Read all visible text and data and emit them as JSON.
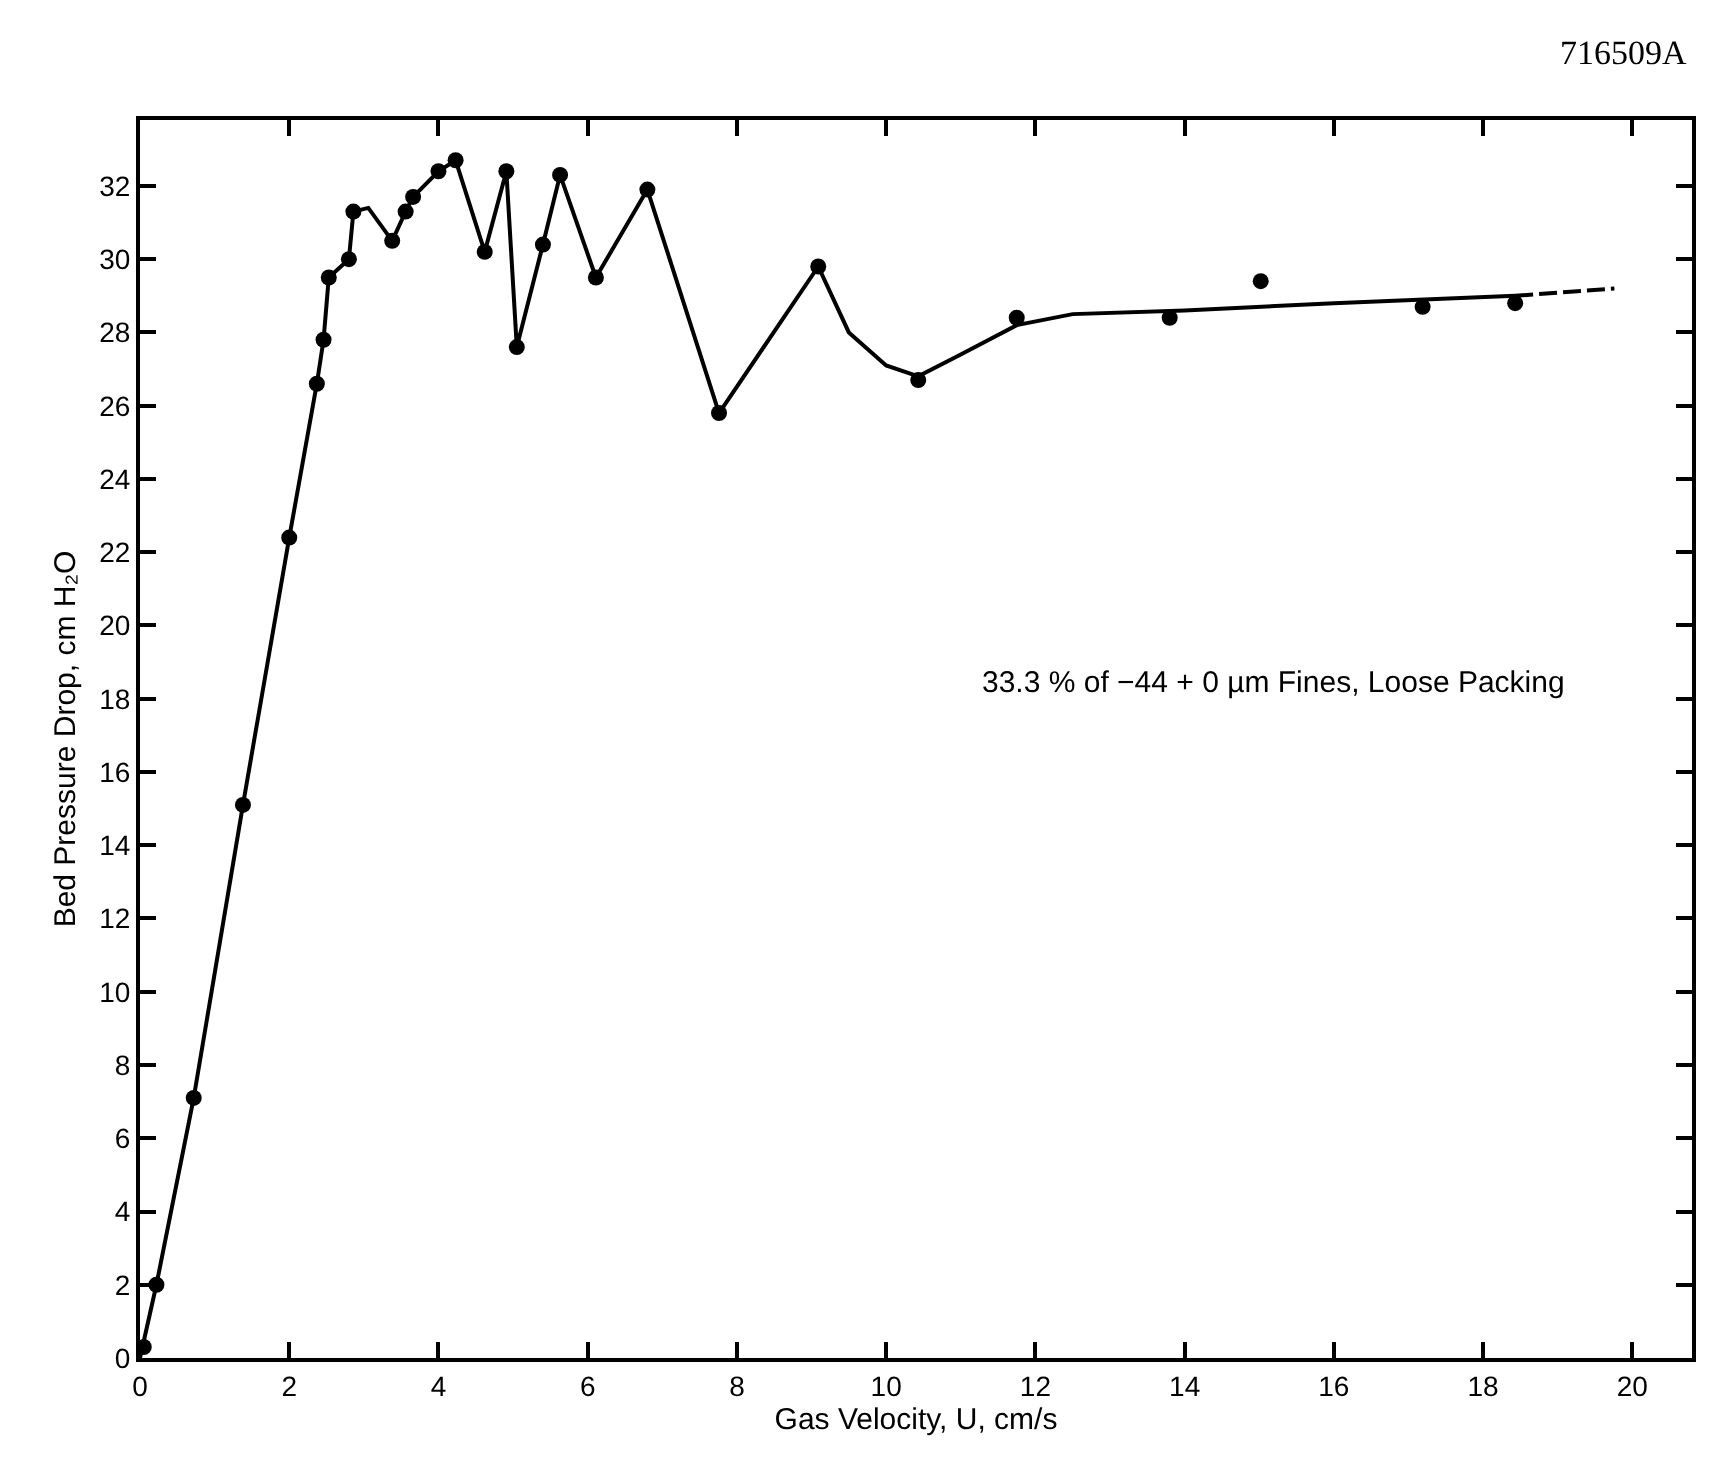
{
  "chart_data": {
    "type": "scatter",
    "xlabel": "Gas Velocity, U, cm/s",
    "ylabel": "Bed Pressure Drop, cm H₂O",
    "annotations": [
      "716509A",
      "33.3 % of −44 + 0 µm Fines, Loose Packing"
    ],
    "xlim": [
      0,
      20.8
    ],
    "ylim": [
      0,
      33.8
    ],
    "xticks": [
      0,
      2,
      4,
      6,
      8,
      10,
      12,
      14,
      16,
      18,
      20
    ],
    "yticks": [
      0,
      2,
      4,
      6,
      8,
      10,
      12,
      14,
      16,
      18,
      20,
      22,
      24,
      26,
      28,
      30,
      32
    ],
    "series": [
      {
        "marker": "circle",
        "color": "#000000",
        "x": [
          0.05,
          0.22,
          0.72,
          1.38,
          2.0,
          2.37,
          2.46,
          2.53,
          2.8,
          2.86,
          3.38,
          3.56,
          3.66,
          4.0,
          4.23,
          4.62,
          4.91,
          5.05,
          5.4,
          5.63,
          6.11,
          6.8,
          7.76,
          9.09,
          10.43,
          11.75,
          13.8,
          15.02,
          17.19,
          18.43
        ],
        "values": [
          0.3,
          2.0,
          7.1,
          15.1,
          22.4,
          26.6,
          27.8,
          29.5,
          30.0,
          31.3,
          30.5,
          31.3,
          31.7,
          32.4,
          32.7,
          30.2,
          32.4,
          27.6,
          30.4,
          32.3,
          29.5,
          31.9,
          25.8,
          29.8,
          26.7,
          28.4,
          28.4,
          29.4,
          28.7,
          28.8
        ]
      },
      {
        "type": "line",
        "line_style": "solid",
        "color": "#000000",
        "x": [
          0,
          0.22,
          0.72,
          1.38,
          2.0,
          2.37,
          2.46,
          2.53,
          2.8,
          2.86,
          3.06,
          3.38,
          3.56,
          3.66,
          4.0,
          4.23,
          4.62,
          4.91,
          5.05,
          5.4,
          5.63,
          6.11,
          6.8,
          7.76,
          9.09,
          9.5,
          10.0,
          10.43,
          11.0,
          11.75,
          12.5,
          14.0,
          16.0,
          18.43
        ],
        "values": [
          0,
          2.0,
          7.1,
          15.1,
          22.4,
          26.6,
          27.8,
          29.5,
          30.0,
          31.3,
          31.4,
          30.5,
          31.3,
          31.7,
          32.4,
          32.7,
          30.2,
          32.4,
          27.6,
          30.4,
          32.3,
          29.5,
          31.9,
          25.8,
          29.8,
          28.0,
          27.1,
          26.8,
          27.4,
          28.2,
          28.5,
          28.6,
          28.8,
          29.0
        ]
      },
      {
        "type": "line",
        "line_style": "dashed",
        "color": "#000000",
        "x": [
          18.43,
          19.76
        ],
        "values": [
          29.0,
          29.2
        ]
      }
    ]
  }
}
